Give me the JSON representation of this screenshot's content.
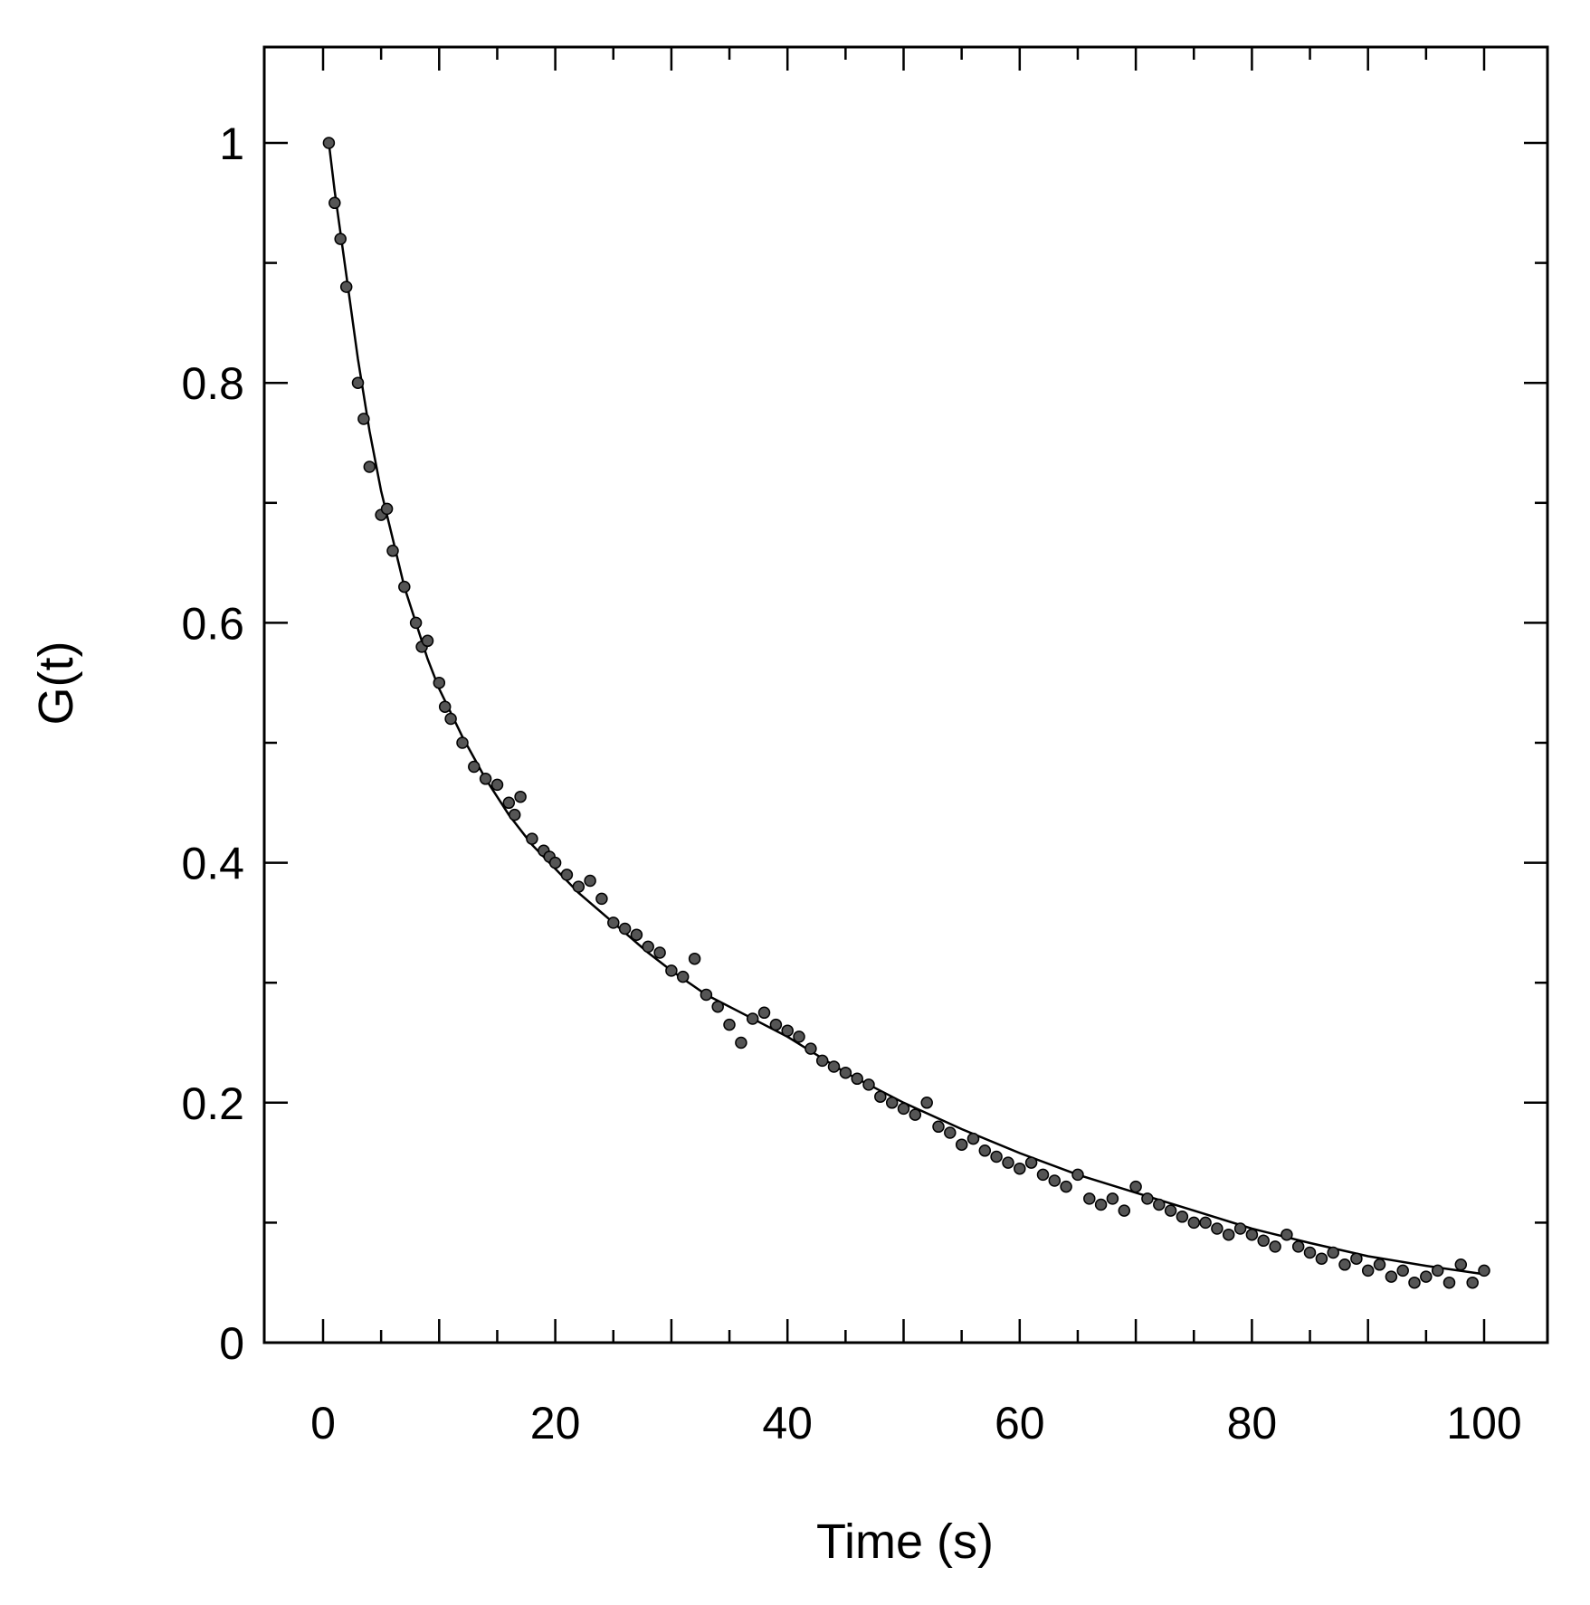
{
  "chart_data": {
    "type": "scatter",
    "title": "",
    "xlabel": "Time (s)",
    "ylabel": "G(t)",
    "xlim": [
      -5,
      105
    ],
    "ylim": [
      0,
      1.08
    ],
    "x_ticks": [
      0,
      20,
      40,
      60,
      80,
      100
    ],
    "x_tick_labels": [
      "0",
      "20",
      "40",
      "60",
      "80",
      "100"
    ],
    "y_ticks": [
      0,
      0.2,
      0.4,
      0.6,
      0.8,
      1
    ],
    "y_tick_labels": [
      "0",
      "0.2",
      "0.4",
      "0.6",
      "0.8",
      "1"
    ],
    "grid": false,
    "legend": "none",
    "colors": {
      "ink": "#000000",
      "marker_fill": "#555555"
    },
    "series": [
      {
        "kind": "points",
        "x": [
          0.5,
          1,
          1.5,
          2,
          3,
          3.5,
          4,
          5,
          5.5,
          6,
          7,
          8,
          8.5,
          9,
          10,
          10.5,
          11,
          12,
          13,
          14,
          15,
          16,
          16.5,
          17,
          18,
          19,
          19.5,
          20,
          21,
          22,
          23,
          24,
          25,
          26,
          27,
          28,
          29,
          30,
          31,
          32,
          33,
          34,
          35,
          36,
          37,
          38,
          39,
          40,
          41,
          42,
          43,
          44,
          45,
          46,
          47,
          48,
          49,
          50,
          51,
          52,
          53,
          54,
          55,
          56,
          57,
          58,
          59,
          60,
          61,
          62,
          63,
          64,
          65,
          66,
          67,
          68,
          69,
          70,
          71,
          72,
          73,
          74,
          75,
          76,
          77,
          78,
          79,
          80,
          81,
          82,
          83,
          84,
          85,
          86,
          87,
          88,
          89,
          90,
          91,
          92,
          93,
          94,
          95,
          96,
          97,
          98,
          99,
          100
        ],
        "y": [
          1.0,
          0.95,
          0.92,
          0.88,
          0.8,
          0.77,
          0.73,
          0.69,
          0.695,
          0.66,
          0.63,
          0.6,
          0.58,
          0.585,
          0.55,
          0.53,
          0.52,
          0.5,
          0.48,
          0.47,
          0.465,
          0.45,
          0.44,
          0.455,
          0.42,
          0.41,
          0.405,
          0.4,
          0.39,
          0.38,
          0.385,
          0.37,
          0.35,
          0.345,
          0.34,
          0.33,
          0.325,
          0.31,
          0.305,
          0.32,
          0.29,
          0.28,
          0.265,
          0.25,
          0.27,
          0.275,
          0.265,
          0.26,
          0.255,
          0.245,
          0.235,
          0.23,
          0.225,
          0.22,
          0.215,
          0.205,
          0.2,
          0.195,
          0.19,
          0.2,
          0.18,
          0.175,
          0.165,
          0.17,
          0.16,
          0.155,
          0.15,
          0.145,
          0.15,
          0.14,
          0.135,
          0.13,
          0.14,
          0.12,
          0.115,
          0.12,
          0.11,
          0.13,
          0.12,
          0.115,
          0.11,
          0.105,
          0.1,
          0.1,
          0.095,
          0.09,
          0.095,
          0.09,
          0.085,
          0.08,
          0.09,
          0.08,
          0.075,
          0.07,
          0.075,
          0.065,
          0.07,
          0.06,
          0.065,
          0.055,
          0.06,
          0.05,
          0.055,
          0.06,
          0.05,
          0.065,
          0.05,
          0.06
        ]
      },
      {
        "kind": "fit-line",
        "x": [
          0.5,
          1,
          2,
          3,
          4,
          5,
          6,
          7,
          8,
          9,
          10,
          12,
          14,
          16,
          18,
          20,
          22,
          25,
          28,
          30,
          33,
          36,
          40,
          45,
          50,
          55,
          60,
          65,
          70,
          75,
          80,
          85,
          90,
          95,
          100
        ],
        "y": [
          1.0,
          0.96,
          0.89,
          0.82,
          0.76,
          0.71,
          0.67,
          0.63,
          0.6,
          0.57,
          0.545,
          0.505,
          0.47,
          0.44,
          0.415,
          0.395,
          0.375,
          0.35,
          0.325,
          0.31,
          0.29,
          0.275,
          0.255,
          0.225,
          0.2,
          0.178,
          0.158,
          0.14,
          0.125,
          0.11,
          0.095,
          0.083,
          0.072,
          0.064,
          0.057
        ]
      }
    ]
  }
}
